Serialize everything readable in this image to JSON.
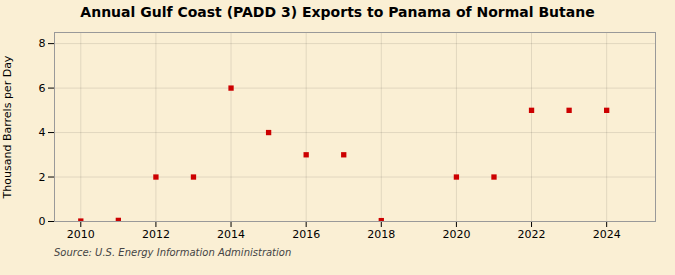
{
  "chart_data": {
    "type": "scatter",
    "title": "Annual Gulf Coast (PADD 3) Exports to Panama of Normal Butane",
    "ylabel": "Thousand Barrels per Day",
    "source": "Source: U.S. Energy Information Administration",
    "x": [
      2010,
      2011,
      2012,
      2013,
      2014,
      2015,
      2016,
      2017,
      2018,
      2020,
      2021,
      2022,
      2023,
      2024
    ],
    "values": [
      0.02,
      0.05,
      2.0,
      2.0,
      6.0,
      4.0,
      3.0,
      3.0,
      0.04,
      2.0,
      2.0,
      5.0,
      5.0,
      5.0
    ],
    "color": "#cc0000",
    "marker": "square",
    "xlim": [
      2009.3,
      2025.3
    ],
    "xticks": [
      2010,
      2012,
      2014,
      2016,
      2018,
      2020,
      2022,
      2024
    ],
    "ylim": [
      0,
      8.5
    ],
    "yticks": [
      0,
      2,
      4,
      6,
      8
    ],
    "grid": true
  }
}
